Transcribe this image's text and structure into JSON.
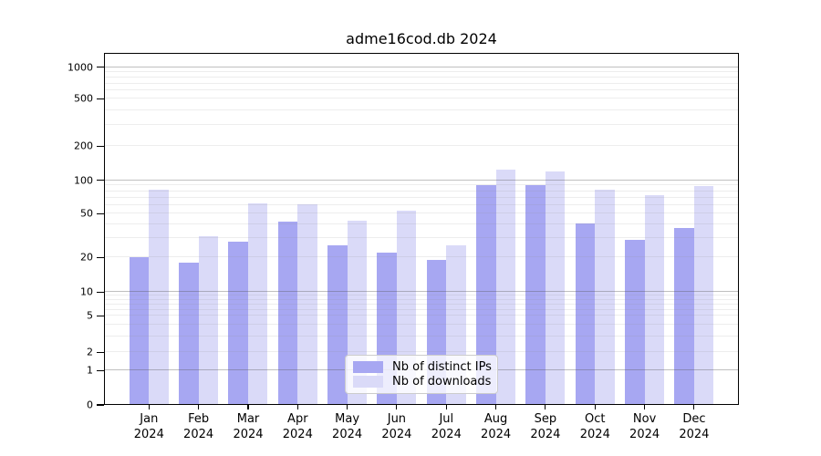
{
  "title": "adme16cod.db 2024",
  "chart_data": {
    "type": "bar",
    "title": "adme16cod.db 2024",
    "categories": [
      "Jan",
      "Feb",
      "Mar",
      "Apr",
      "May",
      "Jun",
      "Jul",
      "Aug",
      "Sep",
      "Oct",
      "Nov",
      "Dec"
    ],
    "year_label": "2024",
    "series": [
      {
        "name": "Nb of distinct IPs",
        "color": "#a7a7f2",
        "values": [
          20,
          18,
          28,
          42,
          26,
          22,
          19,
          91,
          91,
          41,
          29,
          37
        ]
      },
      {
        "name": "Nb of downloads",
        "color": "#dadaf8",
        "values": [
          82,
          31,
          62,
          61,
          43,
          53,
          26,
          124,
          120,
          82,
          74,
          88
        ]
      }
    ],
    "y_axis": {
      "scale": "log-with-zero-baseline",
      "range": [
        0,
        1000
      ],
      "tick_labels": [
        "0",
        "1",
        "2",
        "5",
        "10",
        "20",
        "50",
        "100",
        "200",
        "500",
        "1000"
      ],
      "tick_values": [
        0,
        1,
        2,
        5,
        10,
        20,
        50,
        100,
        200,
        500,
        1000
      ]
    },
    "grid": {
      "enabled": true,
      "major_values": [
        1,
        10,
        100,
        1000
      ],
      "minor_values": [
        2,
        3,
        4,
        5,
        6,
        7,
        8,
        9,
        20,
        30,
        40,
        50,
        60,
        70,
        80,
        90,
        200,
        300,
        400,
        500,
        600,
        700,
        800,
        900
      ]
    },
    "legend": {
      "position": "inside-bottom-center",
      "entries": [
        "Nb of distinct IPs",
        "Nb of downloads"
      ]
    }
  },
  "colors": {
    "background": "#ffffff",
    "bar_distinct_ips": "#a7a7f2",
    "bar_downloads": "#dadaf8",
    "grid_major": "#b0b0b0",
    "grid_minor": "#e8e8e8",
    "axis": "#000000",
    "legend_border": "#cccccc"
  }
}
